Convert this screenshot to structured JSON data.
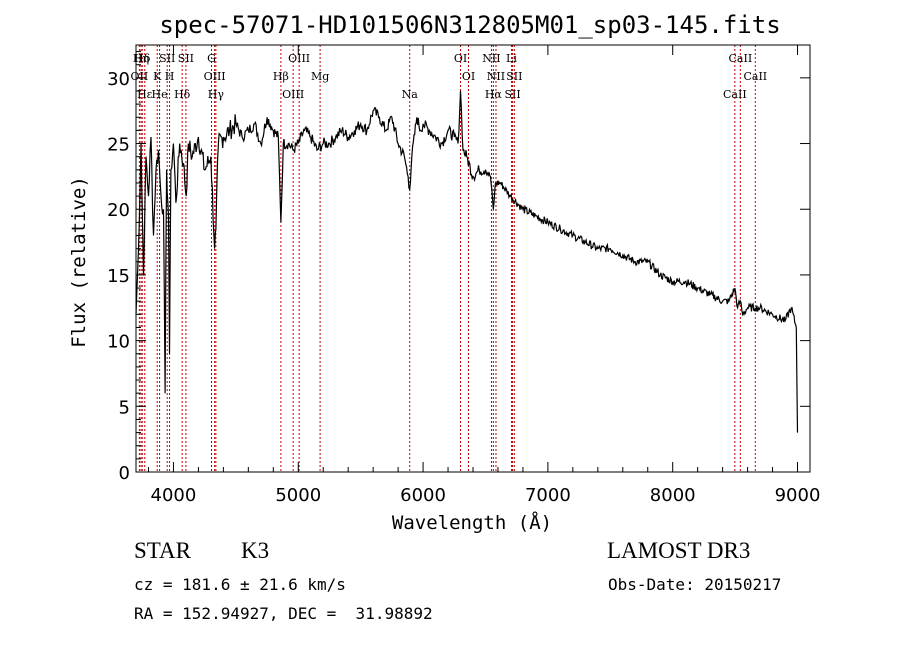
{
  "chart_data": {
    "type": "line",
    "title": "spec-57071-HD101506N312805M01_sp03-145.fits",
    "xlabel": "Wavelength (Å)",
    "ylabel": "Flux (relative)",
    "xlim": [
      3700,
      9100
    ],
    "ylim": [
      0,
      32.5
    ],
    "x_ticks": [
      4000,
      5000,
      6000,
      7000,
      8000,
      9000
    ],
    "y_ticks": [
      0,
      5,
      10,
      15,
      20,
      25,
      30
    ],
    "x_tick_labels": [
      "4000",
      "5000",
      "6000",
      "7000",
      "8000",
      "9000"
    ],
    "y_tick_labels": [
      "0",
      "5",
      "10",
      "15",
      "20",
      "25",
      "30"
    ],
    "series": [
      {
        "name": "flux",
        "color": "#000000",
        "x": [
          3700,
          3720,
          3740,
          3760,
          3780,
          3800,
          3820,
          3840,
          3860,
          3880,
          3900,
          3920,
          3933,
          3945,
          3960,
          3968,
          3980,
          4000,
          4020,
          4050,
          4080,
          4102,
          4120,
          4150,
          4200,
          4250,
          4300,
          4330,
          4340,
          4360,
          4400,
          4450,
          4500,
          4550,
          4600,
          4650,
          4700,
          4750,
          4800,
          4840,
          4861,
          4880,
          4920,
          4960,
          5000,
          5050,
          5100,
          5150,
          5200,
          5250,
          5300,
          5350,
          5400,
          5450,
          5500,
          5550,
          5600,
          5650,
          5700,
          5750,
          5800,
          5850,
          5880,
          5893,
          5910,
          5950,
          5980,
          6000,
          6050,
          6100,
          6150,
          6200,
          6250,
          6280,
          6300,
          6320,
          6350,
          6400,
          6450,
          6500,
          6540,
          6563,
          6580,
          6620,
          6700,
          6800,
          6900,
          7000,
          7100,
          7200,
          7300,
          7400,
          7500,
          7600,
          7700,
          7800,
          7900,
          8000,
          8100,
          8200,
          8300,
          8400,
          8450,
          8498,
          8520,
          8542,
          8560,
          8600,
          8662,
          8700,
          8800,
          8900,
          8950,
          8990,
          9000
        ],
        "values": [
          12.0,
          17.0,
          25.0,
          15.0,
          24.0,
          21.0,
          25.5,
          18.0,
          23.0,
          24.5,
          21.0,
          20.0,
          6.0,
          23.0,
          19.5,
          9.0,
          23.0,
          25.0,
          20.5,
          25.0,
          23.5,
          21.0,
          25.0,
          24.0,
          25.5,
          23.0,
          24.0,
          17.0,
          18.5,
          25.0,
          25.5,
          26.0,
          26.5,
          25.5,
          26.0,
          26.5,
          25.0,
          27.0,
          26.0,
          25.5,
          19.0,
          25.0,
          25.0,
          24.5,
          25.0,
          26.0,
          25.5,
          24.5,
          25.0,
          25.0,
          25.5,
          26.0,
          25.5,
          26.0,
          26.5,
          26.0,
          27.5,
          27.0,
          26.0,
          27.0,
          25.0,
          24.0,
          22.5,
          21.5,
          24.0,
          27.0,
          26.0,
          26.5,
          26.0,
          25.5,
          25.0,
          26.0,
          25.5,
          25.0,
          29.0,
          24.5,
          24.0,
          22.5,
          23.0,
          23.0,
          22.5,
          20.0,
          22.0,
          22.0,
          21.0,
          20.0,
          19.5,
          19.0,
          18.5,
          18.0,
          17.5,
          17.0,
          17.0,
          16.5,
          16.0,
          16.0,
          15.0,
          14.5,
          14.5,
          14.0,
          13.5,
          13.0,
          13.0,
          14.0,
          12.5,
          13.0,
          12.0,
          12.5,
          12.5,
          12.5,
          12.0,
          11.5,
          12.5,
          11.0,
          3.0
        ]
      }
    ],
    "line_markers": [
      {
        "label": "Hδ",
        "wavelength": 3750
      },
      {
        "label": "OII",
        "wavelength": 3727
      },
      {
        "label": "Hε",
        "wavelength": 3770
      },
      {
        "label": "Hη",
        "wavelength": 3740
      },
      {
        "label": "K",
        "wavelength": 3870
      },
      {
        "label": "He",
        "wavelength": 3889
      },
      {
        "label": "SII",
        "wavelength": 3950
      },
      {
        "label": "H",
        "wavelength": 3969
      },
      {
        "label": "Hδ",
        "wavelength": 4070
      },
      {
        "label": "SII",
        "wavelength": 4100
      },
      {
        "label": "OIII",
        "wavelength": 4330
      },
      {
        "label": "Hγ",
        "wavelength": 4340
      },
      {
        "label": "G",
        "wavelength": 4305
      },
      {
        "label": "Hβ",
        "wavelength": 4861
      },
      {
        "label": "OIII",
        "wavelength": 4959
      },
      {
        "label": "OIII",
        "wavelength": 5007
      },
      {
        "label": "Mg",
        "wavelength": 5175
      },
      {
        "label": "Na",
        "wavelength": 5893
      },
      {
        "label": "OI",
        "wavelength": 6300
      },
      {
        "label": "OI",
        "wavelength": 6364
      },
      {
        "label": "Hα",
        "wavelength": 6563
      },
      {
        "label": "NII",
        "wavelength": 6548
      },
      {
        "label": "NII",
        "wavelength": 6584
      },
      {
        "label": "SII",
        "wavelength": 6717
      },
      {
        "label": "Li",
        "wavelength": 6708
      },
      {
        "label": "SII",
        "wavelength": 6731
      },
      {
        "label": "CaII",
        "wavelength": 8498
      },
      {
        "label": "CaII",
        "wavelength": 8542
      },
      {
        "label": "CaII",
        "wavelength": 8662
      }
    ],
    "marker_color": "#c00000"
  },
  "info": {
    "object_class": "STAR",
    "subclass": "K3",
    "survey": "LAMOST DR3",
    "redshift_line": "cz = 181.6 ± 21.6 km/s",
    "obs_date": "Obs-Date: 20150217",
    "coords": "RA = 152.94927, DEC =  31.98892"
  }
}
